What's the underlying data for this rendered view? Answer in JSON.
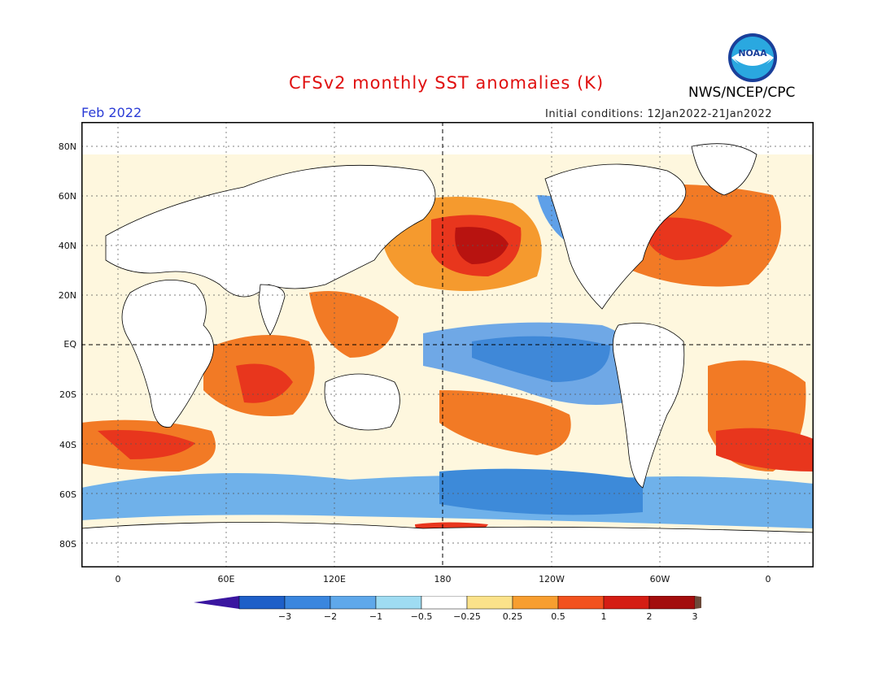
{
  "header": {
    "title": "CFSv2 monthly SST anomalies (K)",
    "agency": "NWS/NCEP/CPC",
    "month": "Feb 2022",
    "initial_conditions": "Initial conditions: 12Jan2022-21Jan2022",
    "logo_text": "NOAA"
  },
  "map": {
    "lat_labels": [
      "80N",
      "60N",
      "40N",
      "20N",
      "EQ",
      "20S",
      "40S",
      "60S",
      "80S"
    ],
    "lon_labels": [
      "0",
      "60E",
      "120E",
      "180",
      "120W",
      "60W",
      "0"
    ],
    "colors": {
      "land": "#ffffff",
      "frame": "#000000"
    }
  },
  "colorbar": {
    "labels": [
      "-3",
      "-2",
      "-1",
      "-0.5",
      "-0.25",
      "0.25",
      "0.5",
      "1",
      "2",
      "3"
    ],
    "colors": [
      "#3a16a0",
      "#1e5fc8",
      "#3a86de",
      "#5fa8ea",
      "#9fdcf2",
      "#ffffff",
      "#fbe28a",
      "#f79e30",
      "#f2521e",
      "#d41d14",
      "#a30d0d",
      "#6b4a3a"
    ]
  }
}
